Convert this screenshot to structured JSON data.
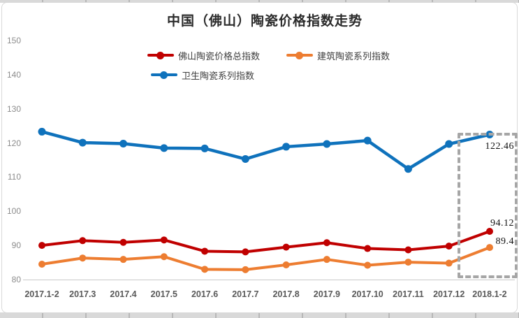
{
  "title": "中国（佛山）陶瓷价格指数走势",
  "chart_data": {
    "type": "line",
    "title": "中国（佛山）陶瓷价格指数走势",
    "categories": [
      "2017.1-2",
      "2017.3",
      "2017.4",
      "2017.5",
      "2017.6",
      "2017.7",
      "2017.8",
      "2017.9",
      "2017.10",
      "2017.11",
      "2017.12",
      "2018.1-2"
    ],
    "series": [
      {
        "name": "佛山陶瓷价格总指数",
        "color": "#c00000",
        "values": [
          90.0,
          91.4,
          90.9,
          91.6,
          88.3,
          88.1,
          89.5,
          90.8,
          89.1,
          88.7,
          89.8,
          94.12
        ],
        "end_label": "94.12"
      },
      {
        "name": "建筑陶瓷系列指数",
        "color": "#ed7d31",
        "values": [
          84.5,
          86.3,
          85.9,
          86.7,
          83.0,
          82.9,
          84.3,
          85.9,
          84.2,
          85.1,
          84.8,
          89.4
        ],
        "end_label": "89.4"
      },
      {
        "name": "卫生陶瓷系列指数",
        "color": "#0f72bc",
        "values": [
          123.3,
          120.1,
          119.8,
          118.5,
          118.4,
          115.3,
          118.9,
          119.7,
          120.7,
          112.4,
          119.7,
          122.46
        ],
        "end_label": "122.46"
      }
    ],
    "ylim": [
      80,
      150
    ],
    "yticks": [
      80,
      90,
      100,
      110,
      120,
      130,
      140,
      150
    ],
    "grid": false,
    "legend_position": "top-center",
    "annotation": {
      "highlighted_category": "2018.1-2",
      "box_color": "#a6a6a6"
    }
  }
}
